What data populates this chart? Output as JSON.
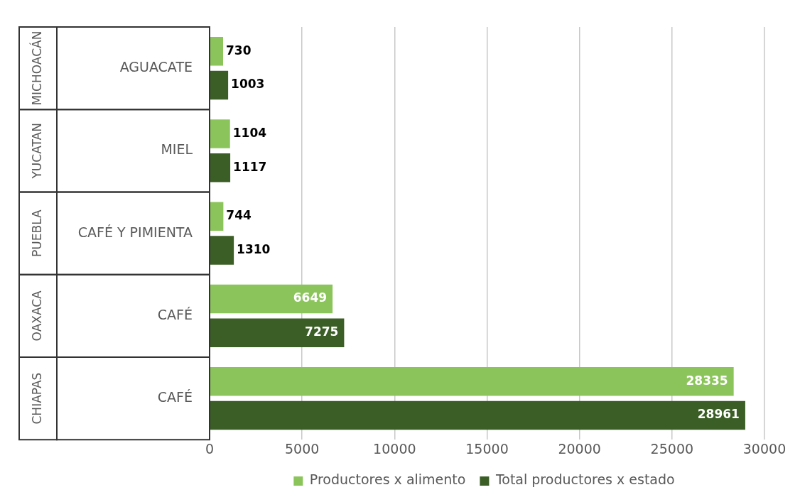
{
  "chart_data": {
    "type": "bar",
    "orientation": "horizontal",
    "categories": [
      "AGUACATE",
      "MIEL",
      "CAFÉ Y PIMIENTA",
      "CAFÉ",
      "CAFÉ"
    ],
    "annotations": [
      "MICHOACÁN",
      "YUCATAN",
      "PUEBLA",
      "OAXACA",
      "CHIAPAS"
    ],
    "series": [
      {
        "name": "Productores x alimento",
        "color": "#8cc45c",
        "values": [
          730,
          1104,
          744,
          6649,
          28335
        ]
      },
      {
        "name": "Total productores x estado",
        "color": "#3b5e26",
        "values": [
          1003,
          1117,
          1310,
          7275,
          28961
        ]
      }
    ],
    "xlim": [
      0,
      30000
    ],
    "xticks": [
      0,
      5000,
      10000,
      15000,
      20000,
      25000,
      30000
    ],
    "grid": "x",
    "legend": "bottom",
    "data_labels": true
  }
}
